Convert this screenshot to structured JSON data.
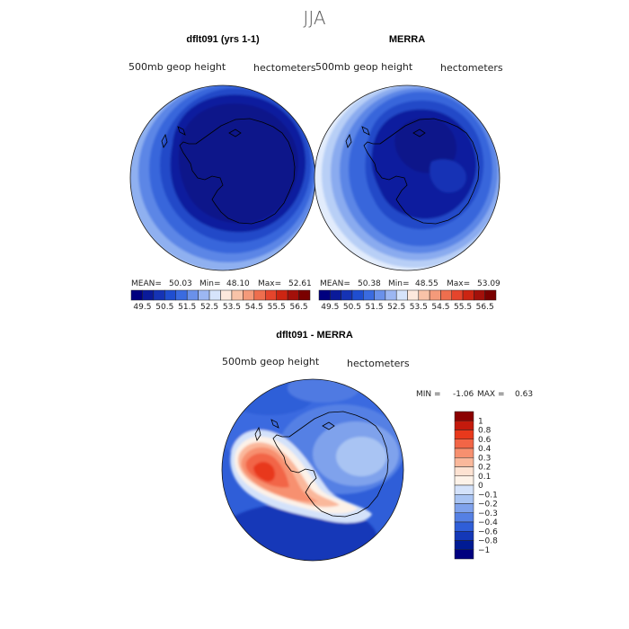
{
  "page": {
    "title": "JJA",
    "colors": {
      "coast": "#000000",
      "land_deep": "#0a1a78",
      "outline": "#1a1a1a"
    }
  },
  "chart_data": [
    {
      "type": "heatmap",
      "name": "model",
      "title": "dflt091 (yrs 1-1)",
      "variable": "500mb geop height",
      "units": "hectometers",
      "projection": "south polar stereographic",
      "stats": {
        "mean_label": "MEAN=",
        "mean": "50.03",
        "min_label": "Min=",
        "min": "48.10",
        "max_label": "Max=",
        "max": "52.61"
      }
    },
    {
      "type": "heatmap",
      "name": "merra",
      "title": "MERRA",
      "variable": "500mb geop height",
      "units": "hectometers",
      "projection": "south polar stereographic",
      "stats": {
        "mean_label": "MEAN=",
        "mean": "50.38",
        "min_label": "Min=",
        "min": "48.55",
        "max_label": "Max=",
        "max": "53.09"
      }
    },
    {
      "type": "heatmap",
      "name": "difference",
      "title": "dflt091 - MERRA",
      "variable": "500mb geop height",
      "units": "hectometers",
      "projection": "south polar stereographic",
      "stats": {
        "min_label": "MIN =",
        "min": "-1.06",
        "max_label": "MAX =",
        "max": "0.63"
      }
    }
  ],
  "colorbar_abs": {
    "labels": [
      "49.5",
      "50.5",
      "51.5",
      "52.5",
      "53.5",
      "54.5",
      "55.5",
      "56.5"
    ],
    "colors": [
      "#00007f",
      "#0a1a9a",
      "#1533b5",
      "#1f4ed0",
      "#3a6be0",
      "#6a91ea",
      "#9cb7f2",
      "#d6e4fb",
      "#fde9dd",
      "#f8c3a8",
      "#f49a7a",
      "#ee6e4e",
      "#e5452c",
      "#cc2512",
      "#a3100a",
      "#7a0000"
    ]
  },
  "colorbar_diff": {
    "labels": [
      "1",
      "0.8",
      "0.6",
      "0.4",
      "0.3",
      "0.2",
      "0.1",
      "0",
      "−0.1",
      "−0.2",
      "−0.3",
      "−0.4",
      "−0.6",
      "−0.8",
      "−1"
    ],
    "colors": [
      "#8b0000",
      "#c41a0c",
      "#e8391c",
      "#f26546",
      "#f7906f",
      "#fab89b",
      "#fde2d2",
      "#fdf2e8",
      "#d4e2fa",
      "#a9c4f3",
      "#7fa2ec",
      "#5580e4",
      "#2f5ed8",
      "#1438b8",
      "#001b94",
      "#00007f"
    ]
  }
}
